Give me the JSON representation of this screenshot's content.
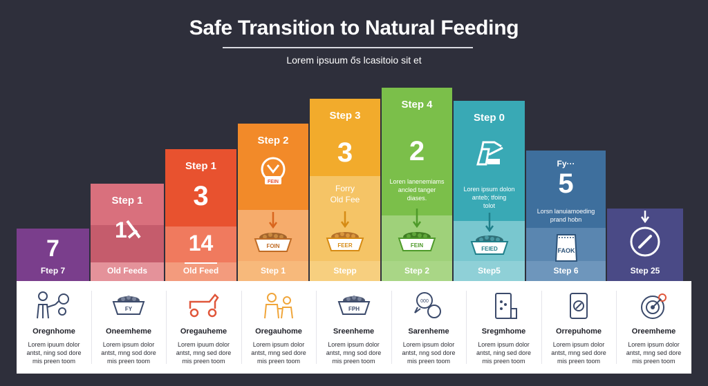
{
  "header": {
    "title": "Safe Transition to Natural Feeding",
    "subtitle": "Lorem ipsuum ős lcasitoio sit et"
  },
  "colors": {
    "background": "#2e2f3b",
    "col1": "#7a3e8c",
    "col2": "#d9707d",
    "col3": "#e8522f",
    "col4": "#f28a29",
    "col5": "#f2ab2c",
    "col6": "#7bbf4a",
    "col7": "#39a9b5",
    "col8": "#3e6f9d",
    "col9": "#4a4a86"
  },
  "columns": [
    {
      "label": "",
      "big": "7",
      "note": "",
      "bottom": "Ftep 7",
      "icon": ""
    },
    {
      "label": "Step 1",
      "big": "",
      "note": "",
      "bottom": "Old Feeds",
      "icon": "numeral-icon"
    },
    {
      "label": "Step 1",
      "big": "3",
      "note": "",
      "bottom": "Old Feed",
      "big2": "14",
      "icon": ""
    },
    {
      "label": "Step 2",
      "big": "",
      "note": "",
      "bottom": "Step 1",
      "icon": "food-bag-icon",
      "bowl": "FOIN",
      "badge": "FEIN"
    },
    {
      "label": "Step 3",
      "big": "3",
      "note": "Forry\nOld Fee",
      "bottom": "Stepp",
      "bowl": "FEER"
    },
    {
      "label": "Step 4",
      "big": "2",
      "note": "Loren lanenemiams\nancled tanger\ndiases.",
      "bottom": "Step 2",
      "bowl": "FEIN"
    },
    {
      "label": "Step 0",
      "big": "",
      "note": "Loren ipsum dolon\nanteb; tfoing\ntolot",
      "bottom": "Step5",
      "bowl": "FEIED",
      "icon": "feeder-machine-icon"
    },
    {
      "label": "Fy···",
      "big": "5",
      "note": "Lorsn lanuiamoeding\nprand hobn",
      "bottom": "Step 6",
      "bag": "FAOK"
    },
    {
      "label": "",
      "big": "",
      "note": "",
      "bottom": "Step 25",
      "icon": "gauge-icon"
    }
  ],
  "cards": [
    {
      "icon": "person-icon",
      "title": "Oregnhome",
      "text": "Lorem ipuum dolor\nantst, ning sod dore\nmis preen toom"
    },
    {
      "icon": "bowl-icon",
      "bowl_text": "FY",
      "title": "Oneemheme",
      "text": "Lorem ipsum dolor\nantst, mng sod dore\nmis preen toom"
    },
    {
      "icon": "dog-cart-icon",
      "title": "Oregauheme",
      "text": "Lorem ipuum dolor\nantst, mng sed dore\nmis preen toom"
    },
    {
      "icon": "family-icon",
      "title": "Oregauhome",
      "text": "Lorem ipsum dolor\nantst, mng sed dore\nmis preen toom"
    },
    {
      "icon": "bowl-icon",
      "bowl_text": "FPH",
      "title": "Sreenheme",
      "text": "Lorem ipsum dolor\nantst, mng sod dore\nmis preen toom"
    },
    {
      "icon": "chat-icon",
      "title": "Sarenheme",
      "text": "Lorem ipsum dolor\nantst, nng sod dore\nmis preen toom"
    },
    {
      "icon": "food-bag-icon",
      "title": "Sregmhome",
      "text": "Lorem ipsum dolor\nantst, ning sed dore\nmis preen toom"
    },
    {
      "icon": "food-can-icon",
      "title": "Orrepuhome",
      "text": "Lorem ipsum dolor\nantst, mng sed dore\nmis preen toom"
    },
    {
      "icon": "target-icon",
      "title": "Oreemheme",
      "text": "Lorem ipsum dolor\nantst, mng sed dore\nmis preen toom"
    }
  ]
}
